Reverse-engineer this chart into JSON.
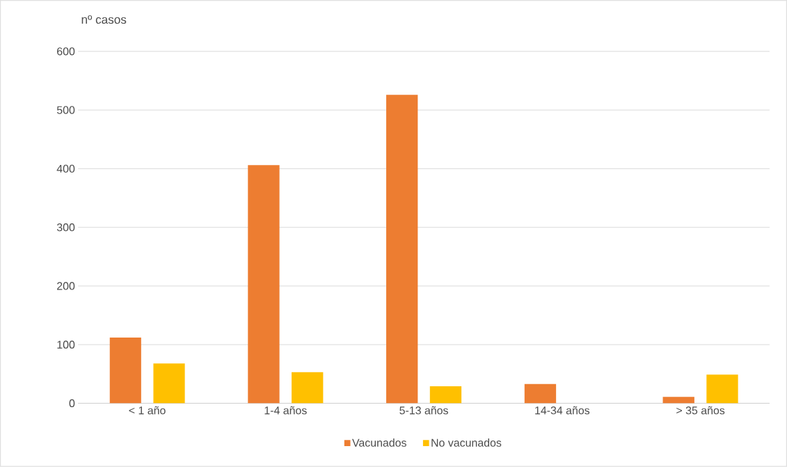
{
  "chart_data": {
    "type": "bar",
    "ylabel": "nº casos",
    "categories": [
      "< 1 año",
      "1-4 años",
      "5-13 años",
      "14-34 años",
      "> 35 años"
    ],
    "series": [
      {
        "name": "Vacunados",
        "color": "#ed7d31",
        "values": [
          112,
          406,
          526,
          33,
          11
        ]
      },
      {
        "name": "No vacunados",
        "color": "#ffc000",
        "values": [
          68,
          53,
          29,
          0,
          49
        ]
      }
    ],
    "ylim": [
      0,
      600
    ],
    "yticks": [
      0,
      100,
      200,
      300,
      400,
      500,
      600
    ],
    "grid": "y",
    "legend": "bottom"
  }
}
